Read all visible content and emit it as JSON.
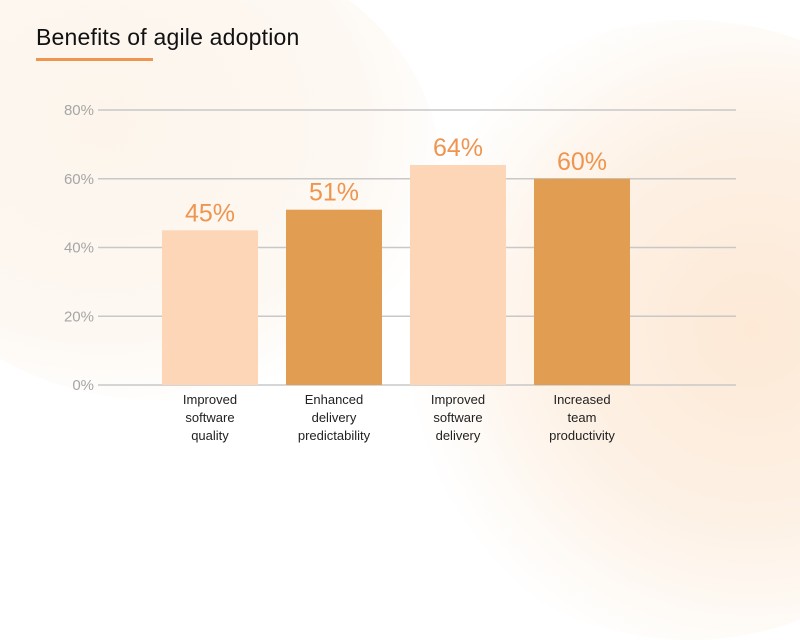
{
  "title": "Benefits of agile adoption",
  "colors": {
    "accent": "#ee9550",
    "bar_light": "#fdd6b8",
    "bar_dark": "#e19e52",
    "value_label": "#ee9550",
    "gridline": "#c8c8c8",
    "tick_label": "#a6a6a6",
    "category_label": "#222222"
  },
  "chart_data": {
    "type": "bar",
    "title": "Benefits of agile adoption",
    "xlabel": "",
    "ylabel": "",
    "ylim": [
      0,
      80
    ],
    "yticks": [
      0,
      20,
      40,
      60,
      80
    ],
    "ytick_labels": [
      "0%",
      "20%",
      "40%",
      "60%",
      "80%"
    ],
    "grid": true,
    "legend": "none",
    "categories": [
      [
        "Improved",
        "software",
        "quality"
      ],
      [
        "Enhanced",
        "delivery",
        "predictability"
      ],
      [
        "Improved",
        "software",
        "delivery"
      ],
      [
        "Increased",
        "team",
        "productivity"
      ]
    ],
    "values": [
      45,
      51,
      64,
      60
    ],
    "data_labels": [
      "45%",
      "51%",
      "64%",
      "60%"
    ],
    "bar_styles": [
      "light",
      "dark",
      "light",
      "dark"
    ]
  }
}
